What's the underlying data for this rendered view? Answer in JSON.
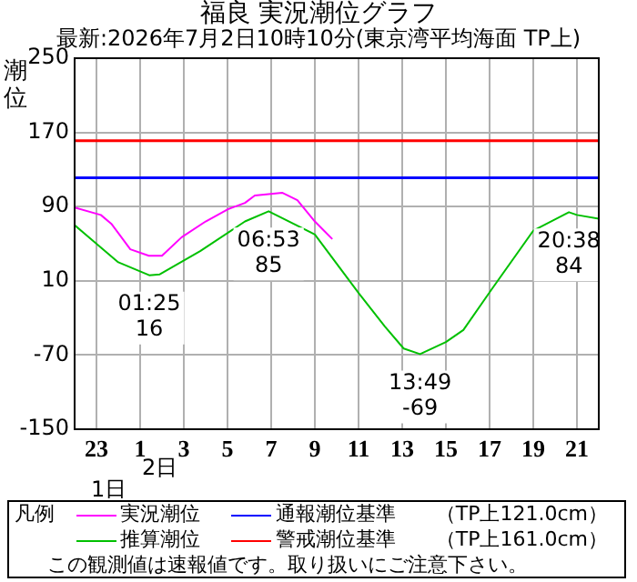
{
  "chart_data": {
    "type": "line",
    "title": "福良 実況潮位グラフ",
    "subtitle": "最新:2026年7月2日10時10分(東京湾平均海面 TP上)",
    "ylabel": "潮位",
    "legend_title": "凡例",
    "xlim": [
      "2026-07-01T22:00",
      "2026-07-02T22:00"
    ],
    "xticks": [
      {
        "value": "2026-07-01T23:00",
        "label": "23"
      },
      {
        "value": "2026-07-02T01:00",
        "label": "1"
      },
      {
        "value": "2026-07-02T03:00",
        "label": "3"
      },
      {
        "value": "2026-07-02T05:00",
        "label": "5"
      },
      {
        "value": "2026-07-02T07:00",
        "label": "7"
      },
      {
        "value": "2026-07-02T09:00",
        "label": "9"
      },
      {
        "value": "2026-07-02T11:00",
        "label": "11"
      },
      {
        "value": "2026-07-02T13:00",
        "label": "13"
      },
      {
        "value": "2026-07-02T15:00",
        "label": "15"
      },
      {
        "value": "2026-07-02T17:00",
        "label": "17"
      },
      {
        "value": "2026-07-02T19:00",
        "label": "19"
      },
      {
        "value": "2026-07-02T21:00",
        "label": "21"
      }
    ],
    "ylim": [
      -150,
      250
    ],
    "yticks": [
      -150,
      -70,
      10,
      90,
      170,
      250
    ],
    "grid": true,
    "legend": "bottom",
    "marker": "none",
    "line_style": "solid",
    "series": [
      {
        "name": "実況潮位",
        "color": "#ff00ff",
        "x": [
          "2026-07-01T22:00",
          "2026-07-01T23:12",
          "2026-07-01T23:42",
          "2026-07-02T00:33",
          "2026-07-02T01:24",
          "2026-07-02T02:00",
          "2026-07-02T02:54",
          "2026-07-02T04:00",
          "2026-07-02T05:00",
          "2026-07-02T05:48",
          "2026-07-02T06:15",
          "2026-07-02T07:30",
          "2026-07-02T08:12",
          "2026-07-02T09:00",
          "2026-07-02T09:48"
        ],
        "values": [
          89,
          81,
          71,
          44,
          37,
          37,
          57,
          74,
          87,
          94,
          102,
          105,
          97,
          74,
          55
        ]
      },
      {
        "name": "推算潮位",
        "color": "#00c000",
        "x": [
          "2026-07-01T22:00",
          "2026-07-02T00:00",
          "2026-07-02T01:25",
          "2026-07-02T01:54",
          "2026-07-02T03:45",
          "2026-07-02T05:48",
          "2026-07-02T06:53",
          "2026-07-02T09:00",
          "2026-07-02T11:00",
          "2026-07-02T12:12",
          "2026-07-02T13:04",
          "2026-07-02T13:49",
          "2026-07-02T15:00",
          "2026-07-02T15:48",
          "2026-07-02T17:06",
          "2026-07-02T19:00",
          "2026-07-02T20:38",
          "2026-07-02T21:00",
          "2026-07-02T22:00"
        ],
        "values": [
          70,
          30,
          16,
          17,
          42,
          74,
          85,
          60,
          -3,
          -39,
          -63,
          -69,
          -56,
          -43,
          1,
          64,
          84,
          81,
          77
        ]
      }
    ],
    "ref_lines": [
      {
        "axis": "y",
        "value": 121,
        "label": "通報潮位基準　　（TP上121.0cm）",
        "color": "#0000ff"
      },
      {
        "axis": "y",
        "value": 161,
        "label": "警戒潮位基準　　（TP上161.0cm）",
        "color": "#ff0000"
      }
    ],
    "annotations": [
      {
        "text": "01:25\n16",
        "x": "2026-07-02T01:25",
        "y": 16
      },
      {
        "text": "06:53\n85",
        "x": "2026-07-02T06:53",
        "y": 85
      },
      {
        "text": "13:49\n-69",
        "x": "2026-07-02T13:49",
        "y": -69
      },
      {
        "text": "20:38\n84",
        "x": "2026-07-02T20:38",
        "y": 84
      },
      "2日",
      "1日",
      "この観測値は速報値です。取り扱いにご注意下さい。"
    ]
  }
}
